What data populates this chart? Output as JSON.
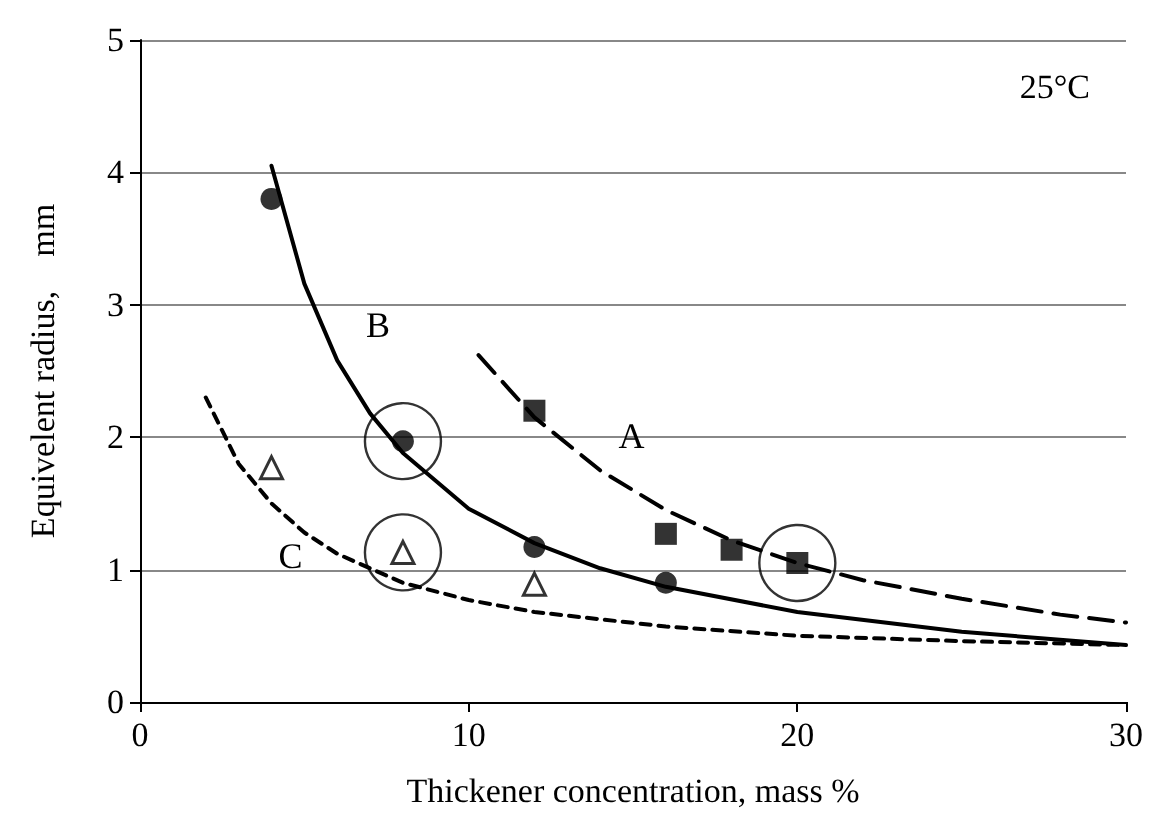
{
  "chart_data": {
    "type": "scatter",
    "xlabel": "Thickener concentration, mass %",
    "ylabel": "Equivelent radius,    mm",
    "xlim": [
      0,
      30
    ],
    "xticks": [
      0,
      10,
      20,
      30
    ],
    "ylim": [
      0,
      5
    ],
    "yticks": [
      0,
      1,
      2,
      3,
      4,
      5
    ],
    "grid": "y",
    "annotations": [
      "25°C"
    ],
    "series": [
      {
        "name": "A",
        "type": "line",
        "line_style": "dashed",
        "marker": "none",
        "color": "#000000",
        "x": [
          10.3,
          12,
          14,
          16,
          18,
          20,
          22,
          25,
          28,
          30
        ],
        "values": [
          2.62,
          2.15,
          1.75,
          1.45,
          1.22,
          1.05,
          0.92,
          0.78,
          0.66,
          0.6
        ]
      },
      {
        "name": "B",
        "type": "line",
        "line_style": "solid",
        "marker": "none",
        "color": "#000000",
        "x": [
          4,
          5,
          6,
          7,
          8,
          10,
          12,
          14,
          16,
          20,
          25,
          30
        ],
        "values": [
          4.05,
          3.16,
          2.58,
          2.18,
          1.88,
          1.46,
          1.2,
          1.01,
          0.87,
          0.68,
          0.53,
          0.43
        ]
      },
      {
        "name": "C",
        "type": "line",
        "line_style": "dotted",
        "marker": "none",
        "color": "#000000",
        "x": [
          2,
          3,
          4,
          5,
          6,
          8,
          10,
          12,
          16,
          20,
          25,
          30
        ],
        "values": [
          2.3,
          1.8,
          1.5,
          1.28,
          1.12,
          0.9,
          0.77,
          0.68,
          0.57,
          0.5,
          0.46,
          0.43
        ]
      },
      {
        "type": "bubble",
        "color": "#000000",
        "x": [
          8,
          8,
          20
        ],
        "values": [
          1.97,
          1.13,
          1.05
        ],
        "sizes": [
          1,
          1,
          1
        ]
      },
      {
        "marker": "square",
        "color": "#000000",
        "x": [
          12,
          16,
          18,
          20
        ],
        "values": [
          2.2,
          1.27,
          1.15,
          1.05
        ]
      },
      {
        "marker": "circle",
        "color": "#000000",
        "x": [
          4,
          8,
          12,
          16
        ],
        "values": [
          3.8,
          1.97,
          1.17,
          0.9
        ]
      },
      {
        "marker": "triangle",
        "color": "#000000",
        "x": [
          4,
          8,
          12
        ],
        "values": [
          1.77,
          1.13,
          0.89
        ]
      }
    ]
  }
}
